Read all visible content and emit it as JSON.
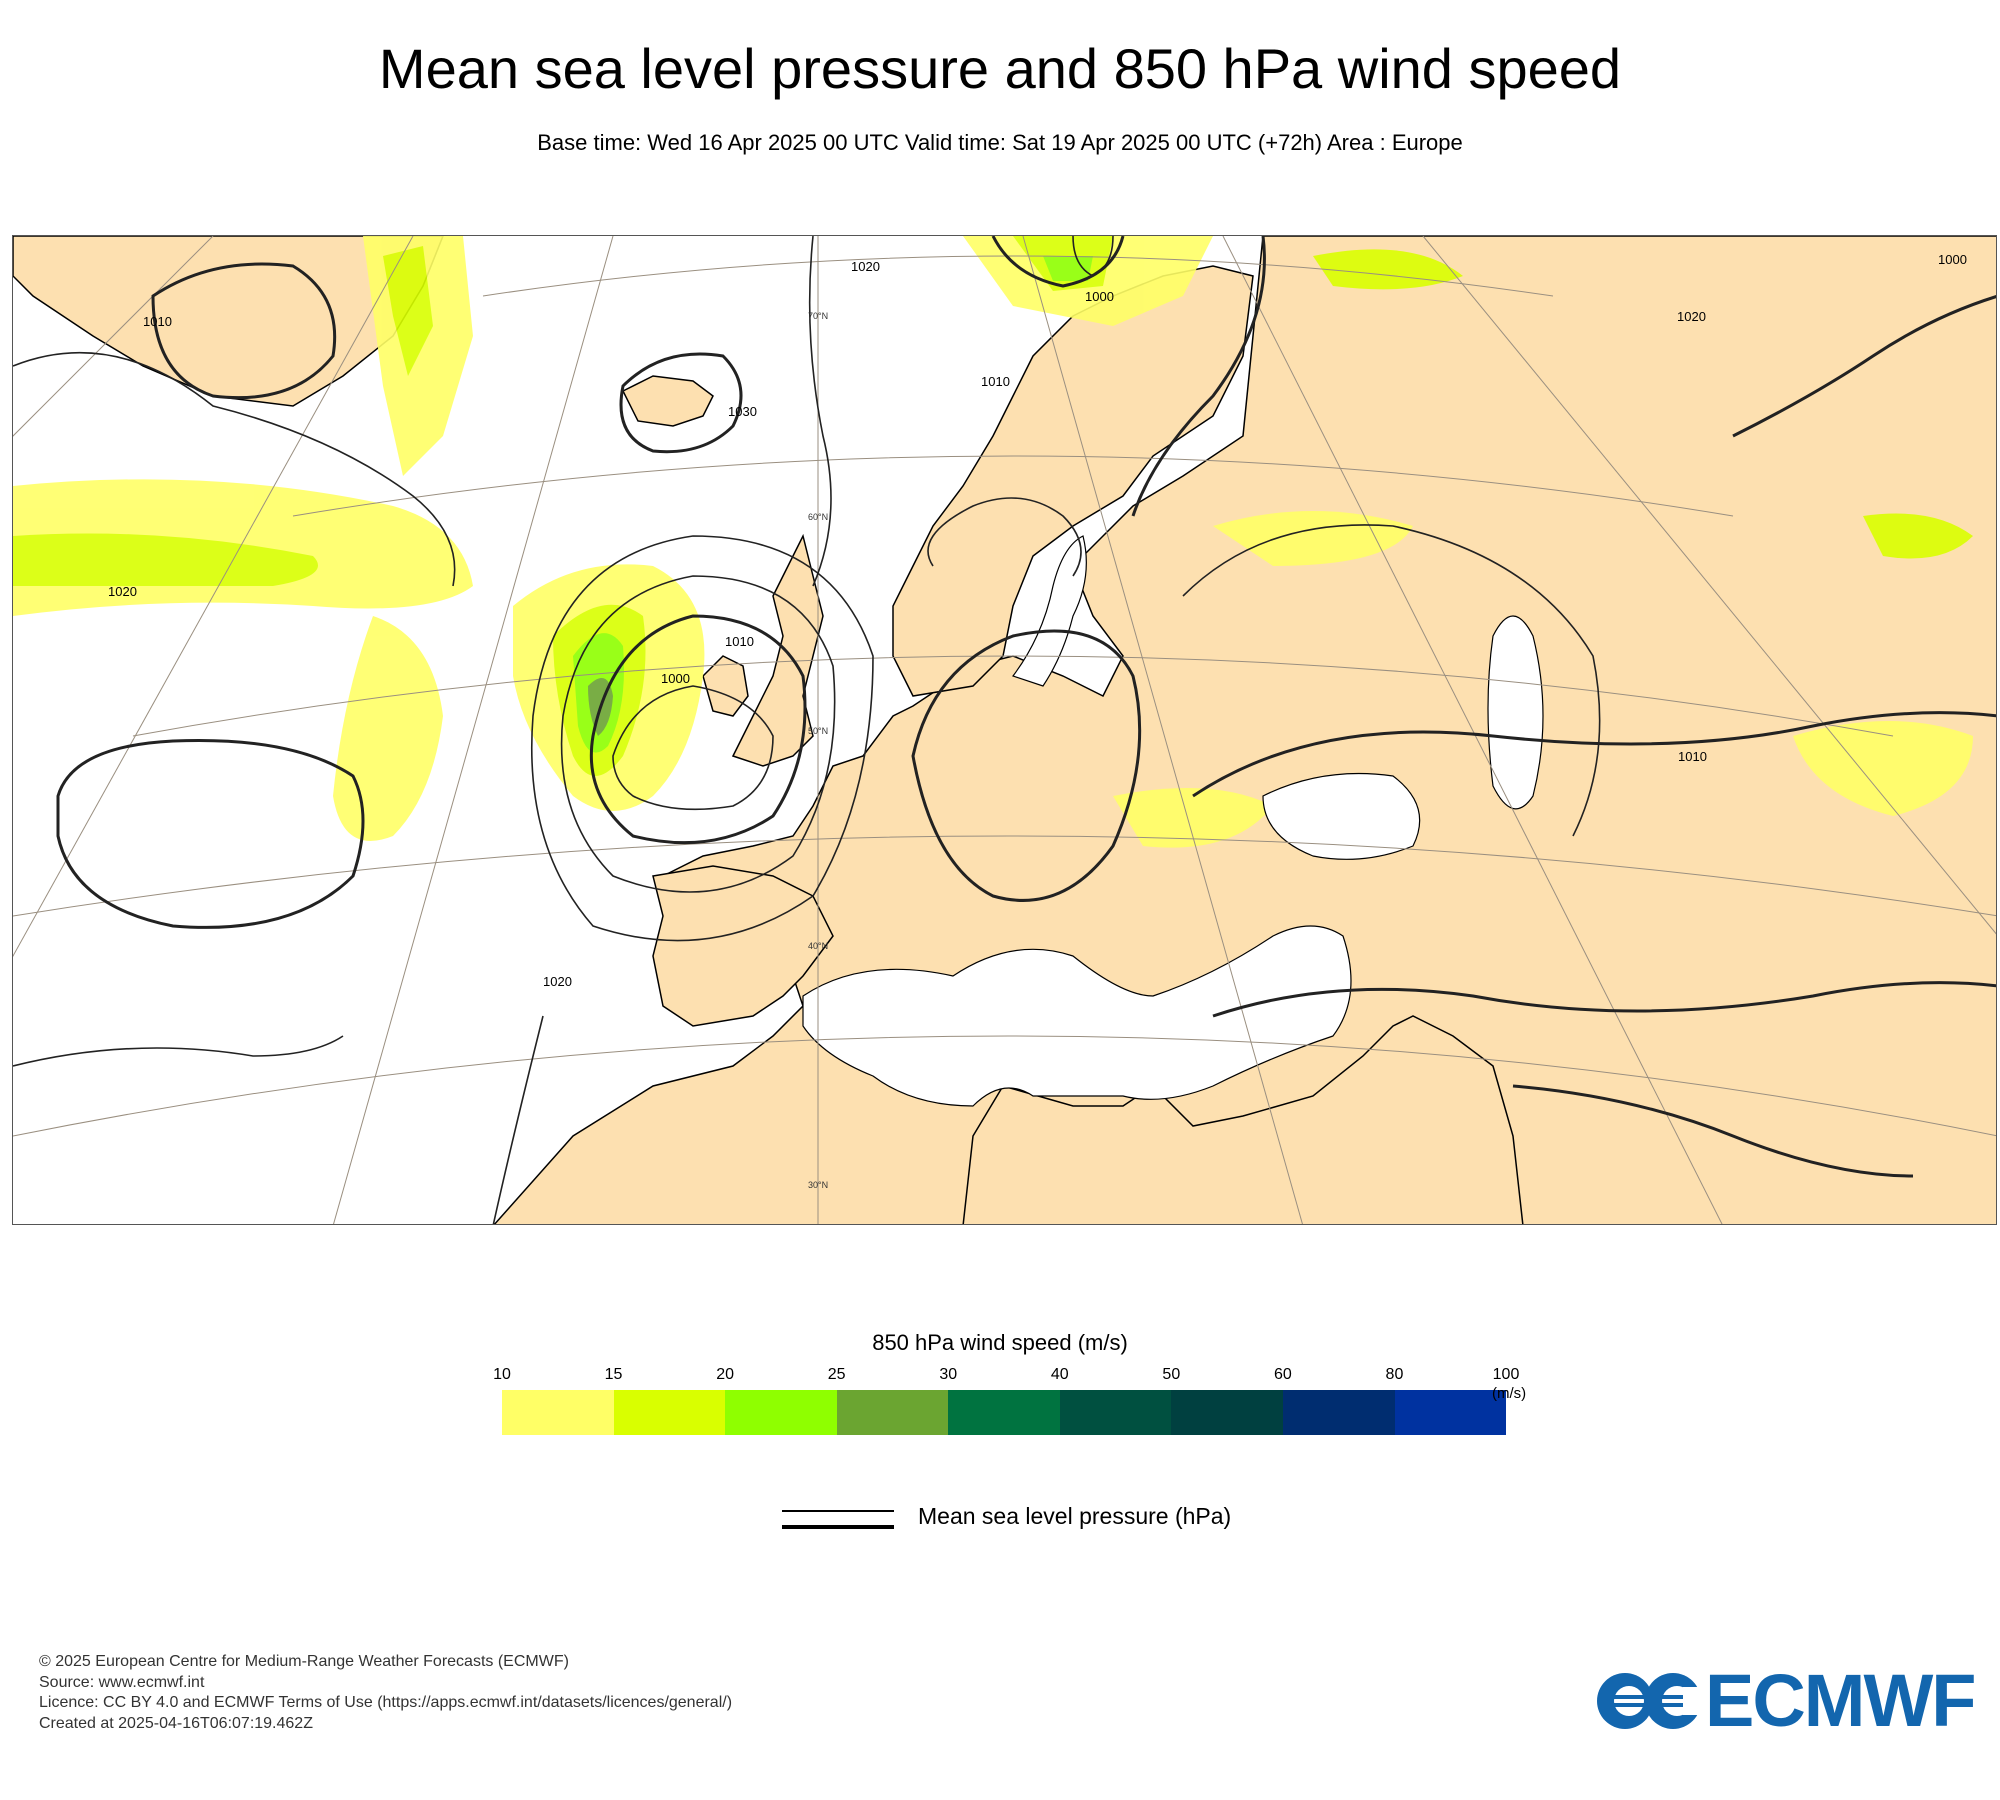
{
  "header": {
    "title": "Mean sea level pressure and 850 hPa wind speed",
    "subtitle": "Base time: Wed 16 Apr 2025 00 UTC Valid time: Sat 19 Apr 2025 00 UTC (+72h) Area : Europe"
  },
  "map": {
    "area": "Europe",
    "colors": {
      "land": "#fde0b0",
      "sea": "#ffffff",
      "coast": "#000000",
      "graticule": "#9a8f80"
    },
    "isobar_labels": [
      "1010",
      "1020",
      "1030",
      "1000",
      "1010",
      "1020",
      "1000",
      "1020",
      "1020",
      "1010",
      "1000",
      "1010"
    ],
    "lat_labels": [
      "70°N",
      "60°N",
      "50°N",
      "40°N",
      "30°N"
    ]
  },
  "colorbar": {
    "title": "850 hPa wind speed (m/s)",
    "unit": "(m/s)",
    "ticks": [
      "10",
      "15",
      "20",
      "25",
      "30",
      "40",
      "50",
      "60",
      "80",
      "100"
    ],
    "colors": [
      "#ffff66",
      "#d9ff00",
      "#8fff00",
      "#6ba531",
      "#007340",
      "#005040",
      "#004040",
      "#002d70",
      "#0032a0"
    ]
  },
  "legend": {
    "label": "Mean sea level pressure (hPa)"
  },
  "footer": {
    "copyright": "© 2025 European Centre for Medium-Range Weather Forecasts (ECMWF)",
    "source": "Source: www.ecmwf.int",
    "licence": "Licence: CC BY 4.0 and ECMWF Terms of Use (https://apps.ecmwf.int/datasets/licences/general/)",
    "created": "Created at 2025-04-16T06:07:19.462Z"
  },
  "logo": {
    "text": "ECMWF",
    "color": "#1366ae"
  }
}
